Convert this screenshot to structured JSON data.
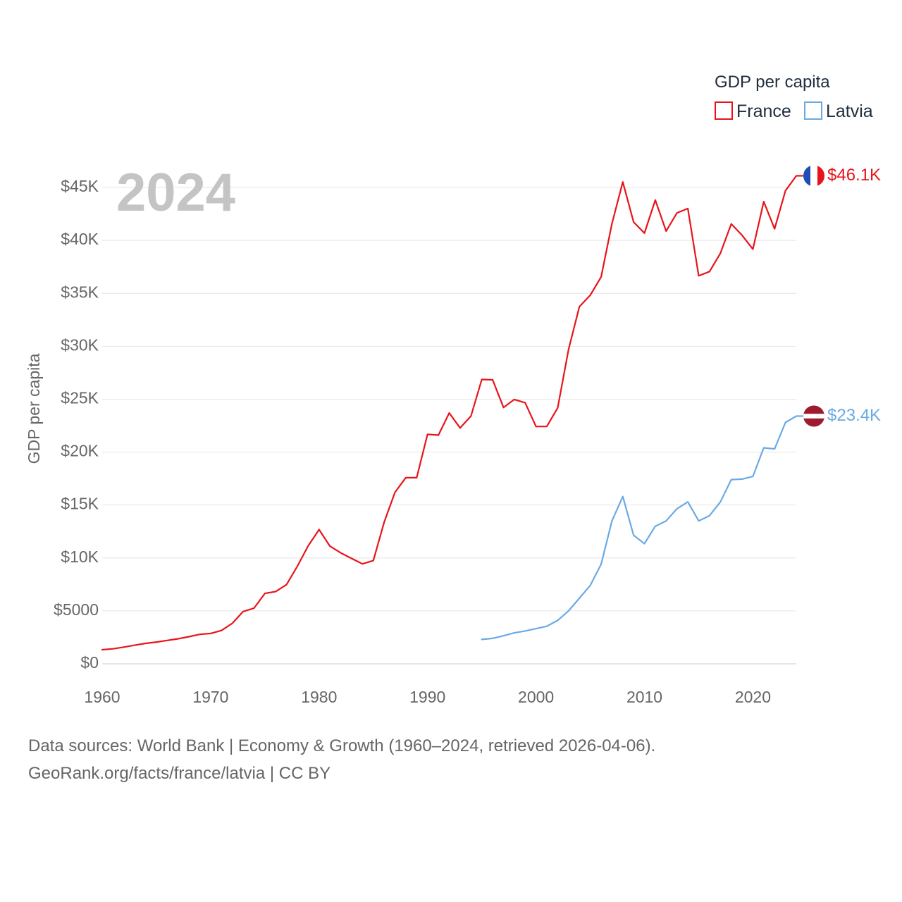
{
  "legend": {
    "title": "GDP per capita",
    "items": [
      {
        "name": "France",
        "color": "#e8141b"
      },
      {
        "name": "Latvia",
        "color": "#6aaae4"
      }
    ]
  },
  "year_label": "2024",
  "footer": {
    "line1": "Data sources: World Bank | Economy & Growth (1960–2024, retrieved 2026-04-06).",
    "line2": "GeoRank.org/facts/france/latvia | CC BY"
  },
  "chart_data": {
    "type": "line",
    "title": "",
    "xlabel": "",
    "ylabel": "GDP per capita",
    "xlim": [
      1960,
      2024
    ],
    "ylim": [
      0,
      45000
    ],
    "x_ticks": [
      1960,
      1970,
      1980,
      1990,
      2000,
      2010,
      2020
    ],
    "y_ticks": [
      {
        "value": 0,
        "label": "$0"
      },
      {
        "value": 5000,
        "label": "$5000"
      },
      {
        "value": 10000,
        "label": "$10K"
      },
      {
        "value": 15000,
        "label": "$15K"
      },
      {
        "value": 20000,
        "label": "$20K"
      },
      {
        "value": 25000,
        "label": "$25K"
      },
      {
        "value": 30000,
        "label": "$30K"
      },
      {
        "value": 35000,
        "label": "$35K"
      },
      {
        "value": 40000,
        "label": "$40K"
      },
      {
        "value": 45000,
        "label": "$45K"
      }
    ],
    "series": [
      {
        "name": "France",
        "color": "#e8141b",
        "end_label": "$46.1K",
        "flag": "france",
        "x": [
          1960,
          1961,
          1962,
          1963,
          1964,
          1965,
          1966,
          1967,
          1968,
          1969,
          1970,
          1971,
          1972,
          1973,
          1974,
          1975,
          1976,
          1977,
          1978,
          1979,
          1980,
          1981,
          1982,
          1983,
          1984,
          1985,
          1986,
          1987,
          1988,
          1989,
          1990,
          1991,
          1992,
          1993,
          1994,
          1995,
          1996,
          1997,
          1998,
          1999,
          2000,
          2001,
          2002,
          2003,
          2004,
          2005,
          2006,
          2007,
          2008,
          2009,
          2010,
          2011,
          2012,
          2013,
          2014,
          2015,
          2016,
          2017,
          2018,
          2019,
          2020,
          2021,
          2022,
          2023,
          2024
        ],
        "y": [
          1330,
          1420,
          1580,
          1760,
          1930,
          2060,
          2210,
          2360,
          2560,
          2780,
          2870,
          3150,
          3830,
          4940,
          5260,
          6650,
          6830,
          7480,
          9220,
          11150,
          12680,
          11110,
          10480,
          9950,
          9440,
          9760,
          13390,
          16200,
          17590,
          17580,
          21680,
          21600,
          23700,
          22280,
          23400,
          26860,
          26830,
          24220,
          24970,
          24670,
          22420,
          22430,
          24180,
          29690,
          33740,
          34820,
          36540,
          41580,
          45520,
          41740,
          40680,
          43810,
          40870,
          42600,
          43010,
          36650,
          37060,
          38780,
          41560,
          40490,
          39170,
          43660,
          41090,
          44690,
          46100
        ]
      },
      {
        "name": "Latvia",
        "color": "#6aaae4",
        "end_label": "$23.4K",
        "flag": "latvia",
        "x": [
          1995,
          1996,
          1997,
          1998,
          1999,
          2000,
          2001,
          2002,
          2003,
          2004,
          2005,
          2006,
          2007,
          2008,
          2009,
          2010,
          2011,
          2012,
          2013,
          2014,
          2015,
          2016,
          2017,
          2018,
          2019,
          2020,
          2021,
          2022,
          2023,
          2024
        ],
        "y": [
          2300,
          2400,
          2650,
          2920,
          3100,
          3320,
          3550,
          4100,
          5000,
          6200,
          7400,
          9400,
          13500,
          15800,
          12150,
          11350,
          13000,
          13500,
          14650,
          15300,
          13500,
          14000,
          15300,
          17400,
          17450,
          17700,
          20400,
          20300,
          22800,
          23400
        ]
      }
    ]
  }
}
